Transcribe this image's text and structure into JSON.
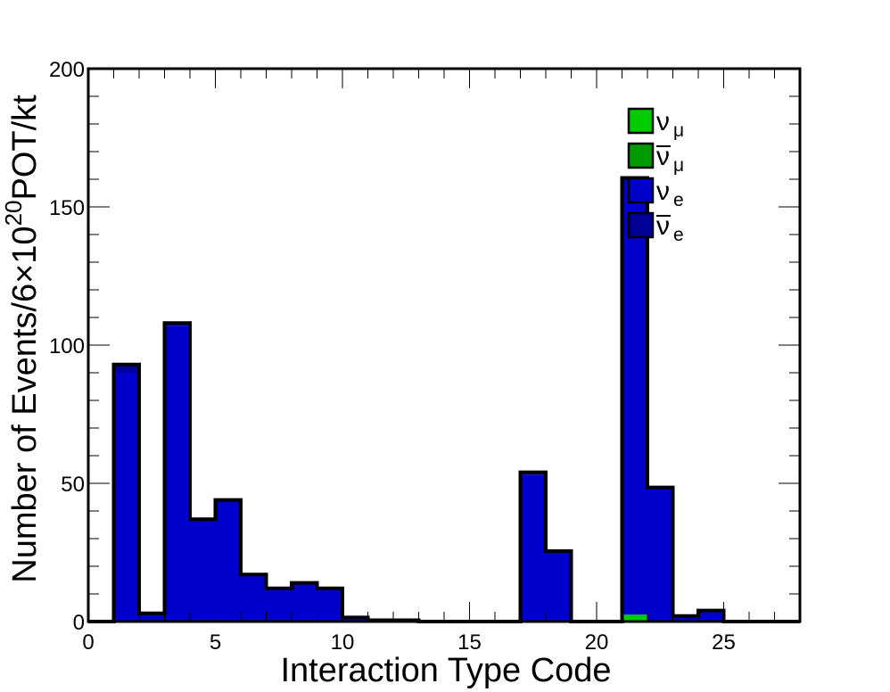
{
  "chart_data": {
    "type": "bar",
    "stacked": true,
    "xlabel": "Interaction Type Code",
    "ylabel": {
      "prefix": "Number of Events/6",
      "times": "×",
      "base": "10",
      "exponent": "20",
      "suffix": "POT/kt"
    },
    "xlim": [
      0,
      28
    ],
    "ylim": [
      0,
      200
    ],
    "x_ticks": [
      0,
      5,
      10,
      15,
      20,
      25
    ],
    "y_ticks": [
      0,
      50,
      100,
      150,
      200
    ],
    "bin_edges": [
      0,
      1,
      2,
      3,
      4,
      5,
      6,
      7,
      8,
      9,
      10,
      11,
      12,
      13,
      14,
      15,
      16,
      17,
      18,
      19,
      20,
      21,
      22,
      23,
      24,
      25,
      26,
      27,
      28
    ],
    "legend_position": "top-right",
    "series": [
      {
        "symbol": "ν",
        "subscript": "μ",
        "bar": false,
        "color": "#00cc00",
        "values": [
          0,
          0,
          0,
          0,
          0,
          0,
          0,
          0,
          0,
          0,
          0,
          0,
          0,
          0,
          0,
          0,
          0,
          0,
          0,
          0,
          0,
          2.5,
          0,
          0,
          0,
          0,
          0,
          0
        ]
      },
      {
        "symbol": "ν",
        "subscript": "μ",
        "bar": true,
        "color": "#009900",
        "values": [
          0,
          0,
          0,
          0,
          0,
          0,
          0,
          0,
          0,
          0,
          0,
          0,
          0,
          0,
          0,
          0,
          0,
          0,
          0,
          0,
          0,
          0,
          0,
          0,
          0,
          0,
          0,
          0
        ]
      },
      {
        "symbol": "ν",
        "subscript": "e",
        "bar": false,
        "color": "#0000cc",
        "values": [
          0,
          90,
          3,
          107,
          37,
          44,
          17,
          12,
          14,
          12,
          1.5,
          0.5,
          0.5,
          0,
          0,
          0,
          0,
          53,
          25,
          0,
          0,
          157,
          48,
          2,
          4,
          0,
          0,
          0
        ]
      },
      {
        "symbol": "ν",
        "subscript": "e",
        "bar": true,
        "color": "#000099",
        "values": [
          0,
          3,
          0,
          1,
          0,
          0,
          0,
          0,
          0,
          0,
          0,
          0,
          0,
          0,
          0,
          0,
          0,
          1,
          0.5,
          0,
          0,
          1,
          0.5,
          0,
          0,
          0,
          0,
          0
        ]
      }
    ]
  }
}
